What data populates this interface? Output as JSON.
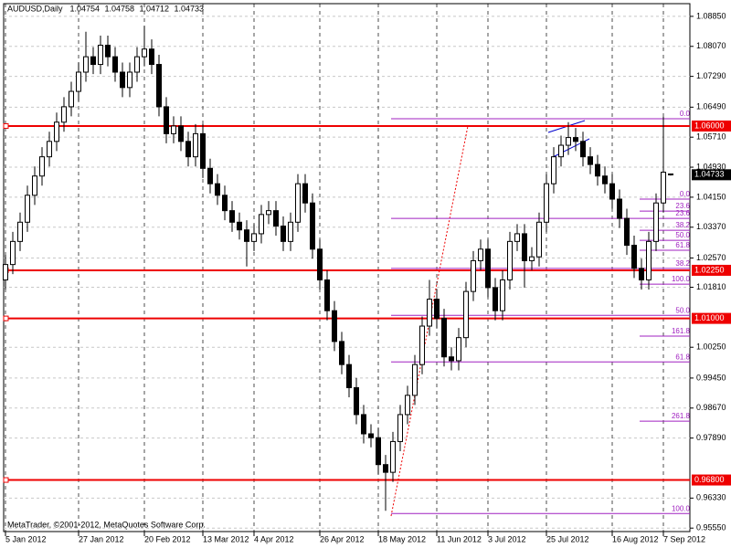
{
  "chart_data": {
    "type": "candlestick",
    "title": "AUDUSD,Daily",
    "footer": "MetaTrader, ©2001-2012, MetaQuotes Software Corp.",
    "ylim": [
      0.9546,
      1.0918
    ],
    "yticks": [
      {
        "value": 1.0885,
        "label": "1.08850"
      },
      {
        "value": 1.0807,
        "label": "1.08070"
      },
      {
        "value": 1.0729,
        "label": "1.07290"
      },
      {
        "value": 1.0649,
        "label": "1.06490"
      },
      {
        "value": 1.0571,
        "label": "1.05710"
      },
      {
        "value": 1.0493,
        "label": "1.04930"
      },
      {
        "value": 1.0415,
        "label": "1.04150"
      },
      {
        "value": 1.0337,
        "label": "1.03370"
      },
      {
        "value": 1.0257,
        "label": "1.02570"
      },
      {
        "value": 1.0181,
        "label": "1.01810"
      },
      {
        "value": 1.0025,
        "label": "1.00250"
      },
      {
        "value": 0.9945,
        "label": "0.99450"
      },
      {
        "value": 0.9867,
        "label": "0.98670"
      },
      {
        "value": 0.9789,
        "label": "0.97890"
      },
      {
        "value": 0.9633,
        "label": "0.96330"
      },
      {
        "value": 0.9555,
        "label": "0.95550"
      }
    ],
    "xticks": [
      {
        "value": 0,
        "label": "5 Jan 2012"
      },
      {
        "value": 10,
        "label": "27 Jan 2012"
      },
      {
        "value": 19,
        "label": "20 Feb 2012"
      },
      {
        "value": 27,
        "label": "13 Mar 2012"
      },
      {
        "value": 34,
        "label": "4 Apr 2012"
      },
      {
        "value": 43,
        "label": "26 Apr 2012"
      },
      {
        "value": 51,
        "label": "18 May 2012"
      },
      {
        "value": 59,
        "label": "11 Jun 2012"
      },
      {
        "value": 66,
        "label": "3 Jul 2012"
      },
      {
        "value": 74,
        "label": "25 Jul 2012"
      },
      {
        "value": 83,
        "label": "16 Aug 2012"
      },
      {
        "value": 90,
        "label": "7 Sep 2012"
      }
    ],
    "grid": true,
    "candles": [
      [
        1.02,
        1.0265,
        1.0175,
        1.024
      ],
      [
        1.024,
        1.0325,
        1.0215,
        1.03
      ],
      [
        1.03,
        1.0375,
        1.0275,
        1.035
      ],
      [
        1.035,
        1.0445,
        1.0325,
        1.042
      ],
      [
        1.042,
        1.0495,
        1.0395,
        1.047
      ],
      [
        1.047,
        1.0545,
        1.0445,
        1.052
      ],
      [
        1.052,
        1.0585,
        1.0495,
        1.056
      ],
      [
        1.056,
        1.0635,
        1.0535,
        1.061
      ],
      [
        1.061,
        1.0675,
        1.0585,
        1.065
      ],
      [
        1.065,
        1.0715,
        1.0625,
        1.069
      ],
      [
        1.069,
        1.0765,
        1.0665,
        1.074
      ],
      [
        1.074,
        1.0845,
        1.0715,
        1.078
      ],
      [
        1.078,
        1.0805,
        1.0735,
        1.076
      ],
      [
        1.076,
        1.0835,
        1.0735,
        1.081
      ],
      [
        1.081,
        1.0835,
        1.0755,
        1.078
      ],
      [
        1.078,
        1.0805,
        1.0715,
        1.074
      ],
      [
        1.074,
        1.0765,
        1.0675,
        1.07
      ],
      [
        1.07,
        1.0765,
        1.0675,
        1.074
      ],
      [
        1.074,
        1.0805,
        1.0715,
        1.078
      ],
      [
        1.078,
        1.086,
        1.0755,
        1.08
      ],
      [
        1.08,
        1.0825,
        1.0735,
        1.076
      ],
      [
        1.076,
        1.0785,
        1.0625,
        1.065
      ],
      [
        1.065,
        1.0675,
        1.0555,
        1.058
      ],
      [
        1.058,
        1.0625,
        1.0555,
        1.06
      ],
      [
        1.06,
        1.0625,
        1.0535,
        1.056
      ],
      [
        1.056,
        1.0585,
        1.0495,
        1.052
      ],
      [
        1.052,
        1.0605,
        1.0495,
        1.058
      ],
      [
        1.058,
        1.0605,
        1.0465,
        1.049
      ],
      [
        1.049,
        1.0515,
        1.0425,
        1.045
      ],
      [
        1.045,
        1.0475,
        1.0395,
        1.042
      ],
      [
        1.042,
        1.0445,
        1.0355,
        1.038
      ],
      [
        1.038,
        1.0405,
        1.0325,
        1.035
      ],
      [
        1.035,
        1.0375,
        1.0305,
        1.033
      ],
      [
        1.033,
        1.0355,
        1.0235,
        1.03
      ],
      [
        1.03,
        1.0345,
        1.0275,
        1.032
      ],
      [
        1.032,
        1.0395,
        1.0295,
        1.037
      ],
      [
        1.037,
        1.0405,
        1.0345,
        1.038
      ],
      [
        1.038,
        1.0405,
        1.0315,
        1.034
      ],
      [
        1.034,
        1.0365,
        1.0275,
        1.03
      ],
      [
        1.03,
        1.0375,
        1.0275,
        1.035
      ],
      [
        1.035,
        1.0475,
        1.0325,
        1.045
      ],
      [
        1.045,
        1.0475,
        1.0375,
        1.04
      ],
      [
        1.04,
        1.0425,
        1.0255,
        1.028
      ],
      [
        1.028,
        1.0305,
        1.0175,
        1.02
      ],
      [
        1.02,
        1.0225,
        1.0095,
        1.012
      ],
      [
        1.012,
        1.0145,
        1.0015,
        1.004
      ],
      [
        1.004,
        1.0065,
        0.9955,
        0.998
      ],
      [
        0.998,
        1.0005,
        0.9895,
        0.992
      ],
      [
        0.992,
        0.9945,
        0.9825,
        0.985
      ],
      [
        0.985,
        0.9875,
        0.9775,
        0.98
      ],
      [
        0.98,
        0.9825,
        0.9765,
        0.979
      ],
      [
        0.979,
        0.9815,
        0.9695,
        0.972
      ],
      [
        0.972,
        0.9745,
        0.96,
        0.97
      ],
      [
        0.97,
        0.9805,
        0.9675,
        0.978
      ],
      [
        0.978,
        0.9875,
        0.9755,
        0.985
      ],
      [
        0.985,
        0.9925,
        0.9825,
        0.99
      ],
      [
        0.99,
        1.0005,
        0.9875,
        0.998
      ],
      [
        0.998,
        1.0105,
        0.9955,
        1.008
      ],
      [
        1.008,
        1.02,
        1.0055,
        1.015
      ],
      [
        1.015,
        1.0175,
        1.0075,
        1.01
      ],
      [
        1.01,
        1.0125,
        0.9975,
        1
      ],
      [
        1,
        1.0025,
        0.9965,
        0.999
      ],
      [
        0.999,
        1.0075,
        0.9965,
        1.005
      ],
      [
        1.005,
        1.0195,
        1.0025,
        1.017
      ],
      [
        1.017,
        1.0275,
        1.0145,
        1.025
      ],
      [
        1.025,
        1.0305,
        1.0225,
        1.028
      ],
      [
        1.028,
        1.0305,
        1.0155,
        1.018
      ],
      [
        1.018,
        1.0205,
        1.0095,
        1.012
      ],
      [
        1.012,
        1.0225,
        1.0095,
        1.02
      ],
      [
        1.02,
        1.0325,
        1.0175,
        1.03
      ],
      [
        1.03,
        1.0345,
        1.0275,
        1.032
      ],
      [
        1.032,
        1.0345,
        1.018,
        1.025
      ],
      [
        1.025,
        1.0285,
        1.0225,
        1.026
      ],
      [
        1.026,
        1.0375,
        1.0235,
        1.035
      ],
      [
        1.035,
        1.0475,
        1.0325,
        1.045
      ],
      [
        1.045,
        1.0545,
        1.0425,
        1.052
      ],
      [
        1.052,
        1.0575,
        1.0495,
        1.055
      ],
      [
        1.055,
        1.061,
        1.0525,
        1.057
      ],
      [
        1.057,
        1.0595,
        1.0535,
        1.056
      ],
      [
        1.056,
        1.0585,
        1.0495,
        1.052
      ],
      [
        1.052,
        1.0545,
        1.0475,
        1.05
      ],
      [
        1.05,
        1.0525,
        1.0445,
        1.047
      ],
      [
        1.047,
        1.0495,
        1.0425,
        1.045
      ],
      [
        1.045,
        1.0475,
        1.0385,
        1.041
      ],
      [
        1.041,
        1.0435,
        1.0335,
        1.036
      ],
      [
        1.036,
        1.0385,
        1.0265,
        1.029
      ],
      [
        1.029,
        1.0315,
        1.0205,
        1.023
      ],
      [
        1.023,
        1.0255,
        1.0175,
        1.02
      ],
      [
        1.02,
        1.0325,
        1.0175,
        1.03
      ],
      [
        1.03,
        1.0425,
        1.0275,
        1.04
      ],
      [
        1.04,
        1.0624,
        1.0375,
        1.048
      ],
      [
        1.04754,
        1.04758,
        1.04712,
        1.04733
      ]
    ],
    "levels": [
      {
        "value": 1.06,
        "label": "1.06000"
      },
      {
        "value": 1.0225,
        "label": "1.02250"
      },
      {
        "value": 1.01,
        "label": "1.01000"
      },
      {
        "value": 0.968,
        "label": "0.96800"
      }
    ],
    "last_price": {
      "value": 1.04733,
      "label": "1.04733"
    },
    "fibo": [
      {
        "levels": [
          {
            "value": 1.0619,
            "label": "0.0"
          },
          {
            "value": 1.036,
            "label": "23.6"
          },
          {
            "value": 1.023,
            "label": "38.2"
          },
          {
            "value": 1.0108,
            "label": "50.0"
          },
          {
            "value": 0.9987,
            "label": "61.8"
          },
          {
            "value": 0.9593,
            "label": "100.0"
          }
        ]
      },
      {
        "levels": [
          {
            "value": 1.041,
            "label": "0.0"
          },
          {
            "value": 1.0379,
            "label": "23.6"
          },
          {
            "value": 1.0329,
            "label": "38.2"
          },
          {
            "value": 1.0303,
            "label": "50.0"
          },
          {
            "value": 1.0277,
            "label": "61.8"
          },
          {
            "value": 1.0189,
            "label": "100.0"
          },
          {
            "value": 1.0054,
            "label": "161.8"
          },
          {
            "value": 0.9833,
            "label": "261.8"
          }
        ]
      }
    ]
  }
}
